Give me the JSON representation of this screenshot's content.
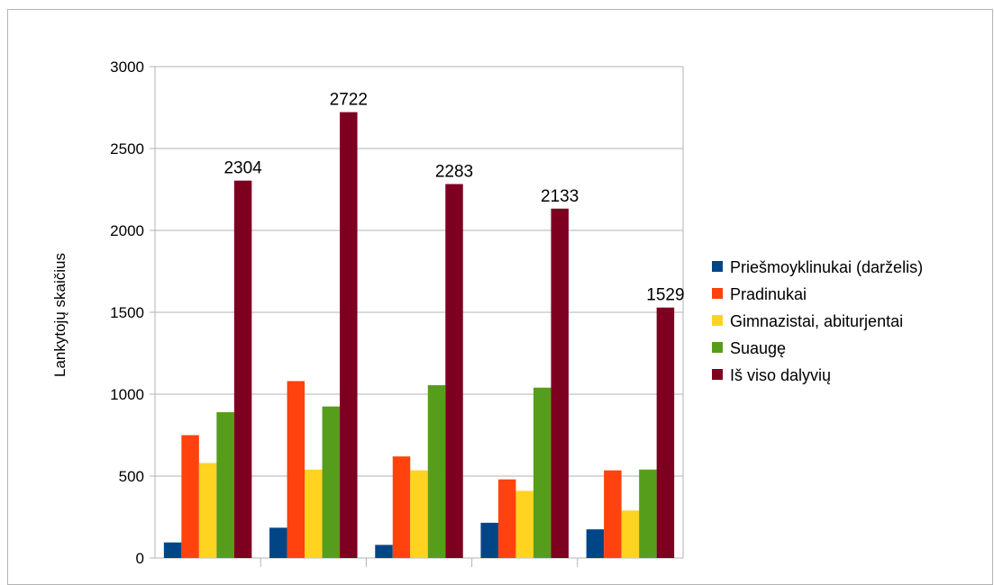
{
  "chart_data": {
    "type": "bar",
    "title": "",
    "ylabel": "Lankytojų skaičius",
    "xlabel": "",
    "ylim": [
      0,
      3000
    ],
    "yticks": [
      0,
      500,
      1000,
      1500,
      2000,
      2500,
      3000
    ],
    "grid": true,
    "legend_position": "right",
    "categories": [
      "",
      "",
      "",
      "",
      ""
    ],
    "series": [
      {
        "name": "Priešmoyklinukai (darželis)",
        "color": "#004586",
        "values": [
          95,
          185,
          80,
          215,
          175
        ]
      },
      {
        "name": "Pradinukai",
        "color": "#ff420e",
        "values": [
          750,
          1080,
          620,
          480,
          535
        ]
      },
      {
        "name": "Gimnazistai, abiturjentai",
        "color": "#ffd320",
        "values": [
          580,
          540,
          535,
          410,
          290
        ]
      },
      {
        "name": "Suaugę",
        "color": "#579d1c",
        "values": [
          890,
          925,
          1055,
          1040,
          540
        ]
      },
      {
        "name": "Iš viso dalyvių",
        "color": "#7e0021",
        "values": [
          2304,
          2722,
          2283,
          2133,
          1529
        ]
      }
    ],
    "data_labels": {
      "series_index": 4,
      "labels": [
        "2304",
        "2722",
        "2283",
        "2133",
        "1529"
      ]
    }
  }
}
